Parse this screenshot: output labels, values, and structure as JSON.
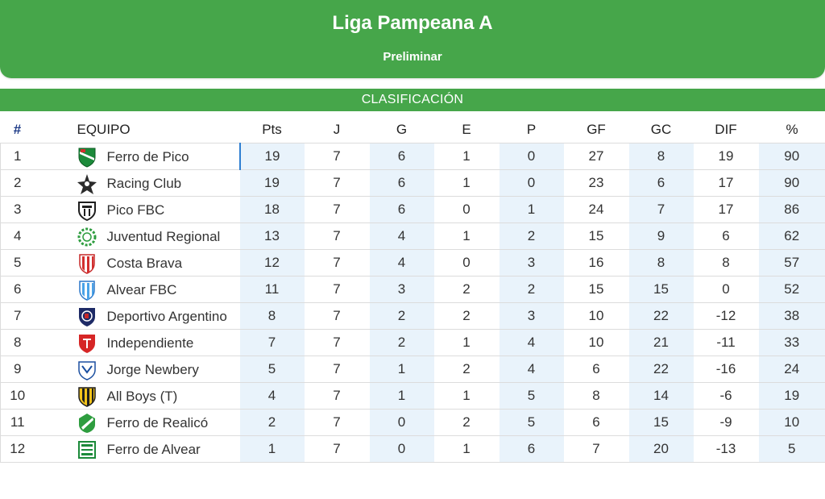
{
  "header": {
    "title": "Liga Pampeana A",
    "subtitle": "Preliminar"
  },
  "section": {
    "label": "CLASIFICACIÓN"
  },
  "table": {
    "columns": {
      "pos": "#",
      "team": "EQUIPO",
      "pts": "Pts",
      "j": "J",
      "g": "G",
      "e": "E",
      "p": "P",
      "gf": "GF",
      "gc": "GC",
      "dif": "DIF",
      "pct": "%"
    },
    "rows": [
      {
        "pos": "1",
        "team": "Ferro de Pico",
        "crest": "ferro-de-pico-crest-icon",
        "pts": "19",
        "j": "7",
        "g": "6",
        "e": "1",
        "p": "0",
        "gf": "27",
        "gc": "8",
        "dif": "19",
        "pct": "90"
      },
      {
        "pos": "2",
        "team": "Racing Club",
        "crest": "racing-club-crest-icon",
        "pts": "19",
        "j": "7",
        "g": "6",
        "e": "1",
        "p": "0",
        "gf": "23",
        "gc": "6",
        "dif": "17",
        "pct": "90"
      },
      {
        "pos": "3",
        "team": "Pico FBC",
        "crest": "pico-fbc-crest-icon",
        "pts": "18",
        "j": "7",
        "g": "6",
        "e": "0",
        "p": "1",
        "gf": "24",
        "gc": "7",
        "dif": "17",
        "pct": "86"
      },
      {
        "pos": "4",
        "team": "Juventud Regional",
        "crest": "juventud-regional-crest-icon",
        "pts": "13",
        "j": "7",
        "g": "4",
        "e": "1",
        "p": "2",
        "gf": "15",
        "gc": "9",
        "dif": "6",
        "pct": "62"
      },
      {
        "pos": "5",
        "team": "Costa Brava",
        "crest": "costa-brava-crest-icon",
        "pts": "12",
        "j": "7",
        "g": "4",
        "e": "0",
        "p": "3",
        "gf": "16",
        "gc": "8",
        "dif": "8",
        "pct": "57"
      },
      {
        "pos": "6",
        "team": "Alvear FBC",
        "crest": "alvear-fbc-crest-icon",
        "pts": "11",
        "j": "7",
        "g": "3",
        "e": "2",
        "p": "2",
        "gf": "15",
        "gc": "15",
        "dif": "0",
        "pct": "52"
      },
      {
        "pos": "7",
        "team": "Deportivo Argentino",
        "crest": "deportivo-argentino-crest-icon",
        "pts": "8",
        "j": "7",
        "g": "2",
        "e": "2",
        "p": "3",
        "gf": "10",
        "gc": "22",
        "dif": "-12",
        "pct": "38"
      },
      {
        "pos": "8",
        "team": "Independiente",
        "crest": "independiente-crest-icon",
        "pts": "7",
        "j": "7",
        "g": "2",
        "e": "1",
        "p": "4",
        "gf": "10",
        "gc": "21",
        "dif": "-11",
        "pct": "33"
      },
      {
        "pos": "9",
        "team": "Jorge Newbery",
        "crest": "jorge-newbery-crest-icon",
        "pts": "5",
        "j": "7",
        "g": "1",
        "e": "2",
        "p": "4",
        "gf": "6",
        "gc": "22",
        "dif": "-16",
        "pct": "24"
      },
      {
        "pos": "10",
        "team": "All Boys (T)",
        "crest": "all-boys-crest-icon",
        "pts": "4",
        "j": "7",
        "g": "1",
        "e": "1",
        "p": "5",
        "gf": "8",
        "gc": "14",
        "dif": "-6",
        "pct": "19"
      },
      {
        "pos": "11",
        "team": "Ferro de Realicó",
        "crest": "ferro-de-realico-crest-icon",
        "pts": "2",
        "j": "7",
        "g": "0",
        "e": "2",
        "p": "5",
        "gf": "6",
        "gc": "15",
        "dif": "-9",
        "pct": "10"
      },
      {
        "pos": "12",
        "team": "Ferro de Alvear",
        "crest": "ferro-de-alvear-crest-icon",
        "pts": "1",
        "j": "7",
        "g": "0",
        "e": "1",
        "p": "6",
        "gf": "7",
        "gc": "20",
        "dif": "-13",
        "pct": "5"
      }
    ]
  },
  "colors": {
    "header_green": "#46a64a",
    "shaded_column": "#e9f3fb",
    "position_header": "#1f3c88",
    "focus_marker": "#2f7fd1"
  }
}
